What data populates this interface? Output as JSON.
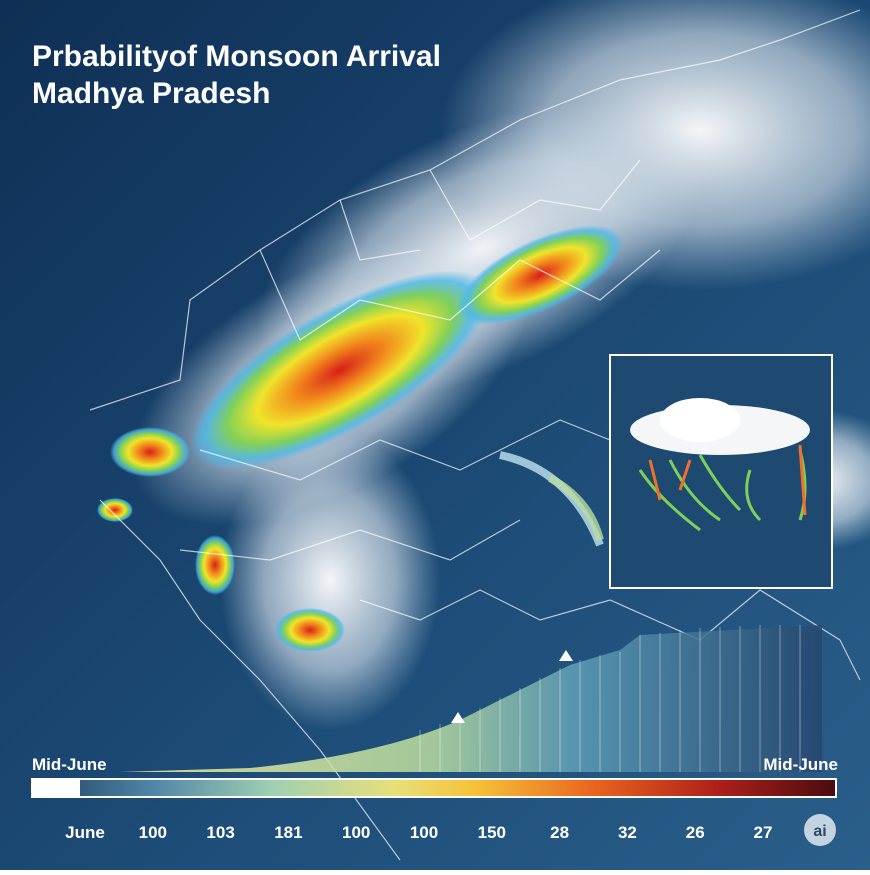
{
  "header": {
    "title_line1": "Prbabilityof Monsoon Arrival",
    "title_line2": "Madhya Pradesh"
  },
  "legend": {
    "left_label": "Mid-June",
    "right_label": "Mid-June",
    "ticks": [
      "June",
      "100",
      "103",
      "181",
      "100",
      "100",
      "150",
      "28",
      "32",
      "26",
      "27"
    ]
  },
  "badge": "ai"
}
